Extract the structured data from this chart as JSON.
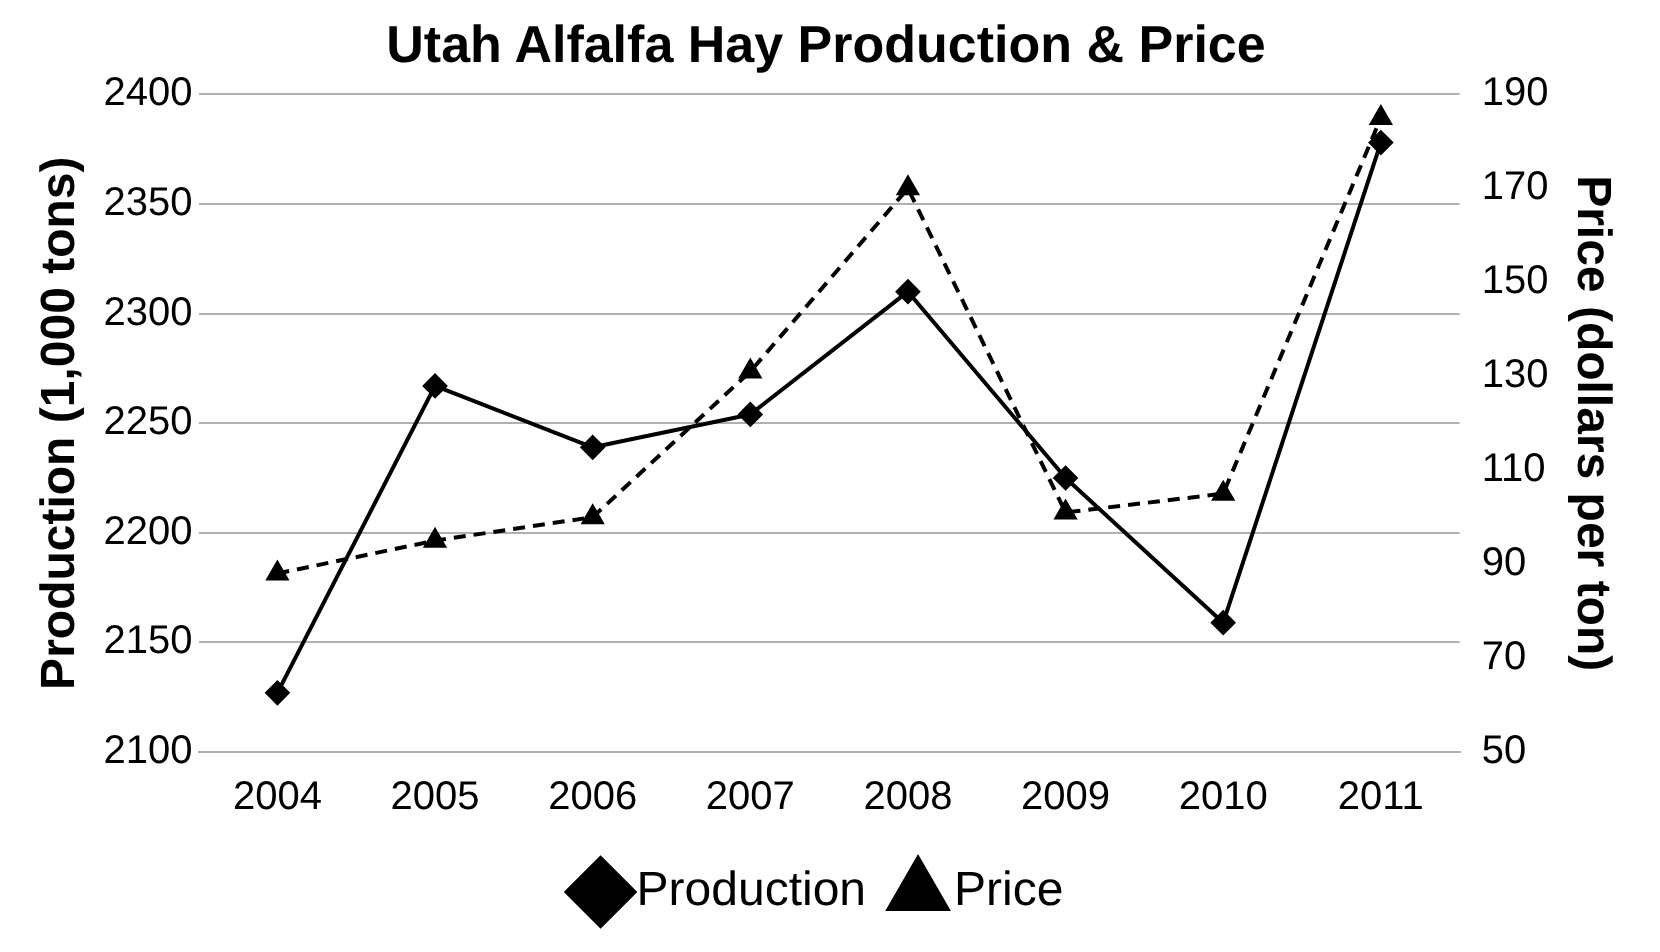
{
  "chart_data": {
    "type": "line",
    "title": "Utah Alfalfa Hay Production & Price",
    "ylabel": "Production (1,000 tons)",
    "y2label": "Price (dollars per ton)",
    "categories": [
      "2004",
      "2005",
      "2006",
      "2007",
      "2008",
      "2009",
      "2010",
      "2011"
    ],
    "series": [
      {
        "name": "Production",
        "color": "#000000",
        "marker": "diamond",
        "line_style": "solid",
        "values": [
          2127,
          2267,
          2239,
          2254,
          2310,
          2225,
          2159,
          2378
        ]
      },
      {
        "name": "Price",
        "color": "#000000",
        "marker": "triangle",
        "line_style": "dashed",
        "axis": "y2",
        "values": [
          88,
          95,
          100,
          131,
          170,
          101,
          105,
          185
        ]
      }
    ],
    "ylim": [
      2100,
      2400
    ],
    "yticks": [
      2100,
      2150,
      2200,
      2250,
      2300,
      2350,
      2400
    ],
    "y2lim": [
      50,
      190
    ],
    "y2ticks": [
      50,
      70,
      90,
      110,
      130,
      150,
      170,
      190
    ],
    "grid": "y",
    "legend": "bottom"
  }
}
